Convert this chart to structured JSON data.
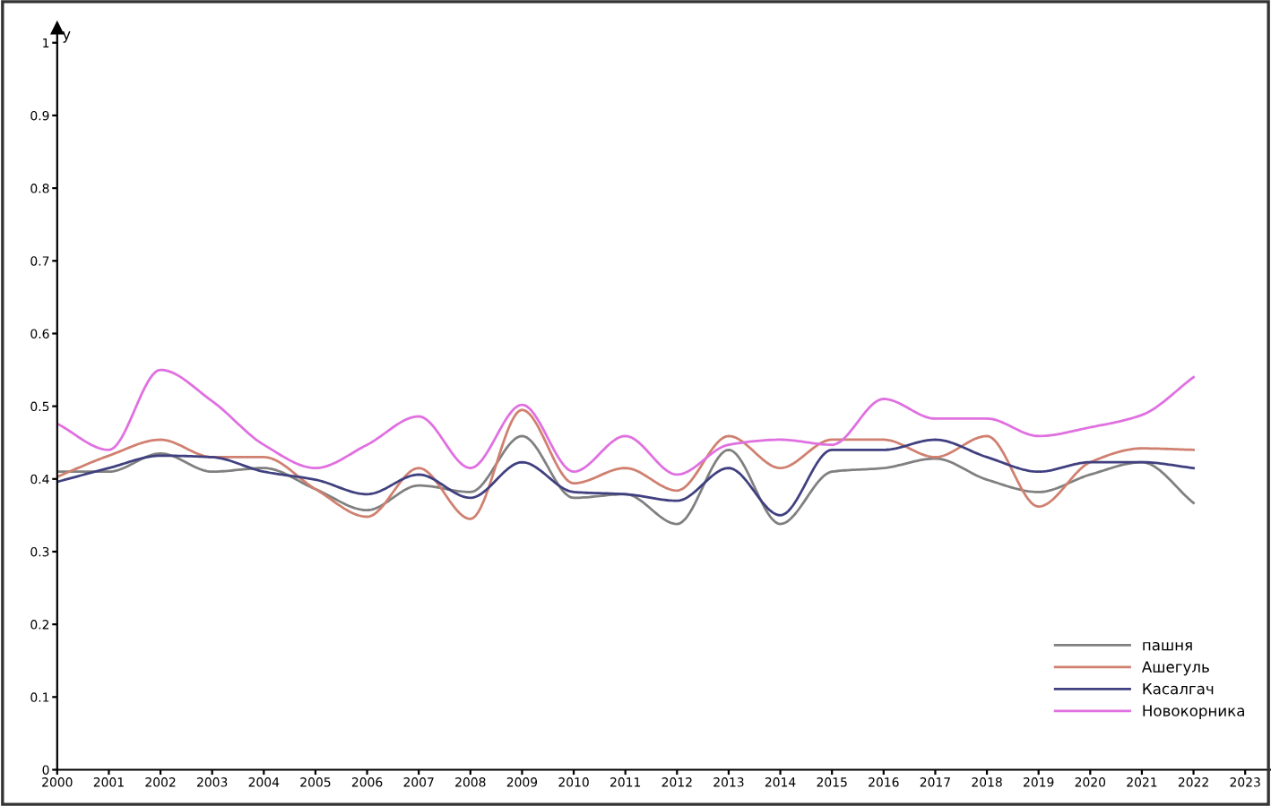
{
  "chart_data": {
    "type": "line",
    "ylabel": "y",
    "x": [
      2000,
      2001,
      2002,
      2003,
      2004,
      2005,
      2006,
      2007,
      2008,
      2009,
      2010,
      2011,
      2012,
      2013,
      2014,
      2015,
      2016,
      2017,
      2018,
      2019,
      2020,
      2021,
      2022
    ],
    "series": [
      {
        "name": "пашня",
        "color": "#808080",
        "values": [
          0.41,
          0.41,
          0.435,
          0.41,
          0.415,
          0.386,
          0.357,
          0.391,
          0.382,
          0.459,
          0.374,
          0.379,
          0.338,
          0.44,
          0.338,
          0.41,
          0.415,
          0.428,
          0.399,
          0.382,
          0.406,
          0.423,
          0.367
        ]
      },
      {
        "name": "Ашегуль",
        "color": "#d08070",
        "values": [
          0.403,
          0.432,
          0.454,
          0.43,
          0.43,
          0.386,
          0.348,
          0.415,
          0.345,
          0.495,
          0.394,
          0.415,
          0.384,
          0.459,
          0.415,
          0.454,
          0.454,
          0.43,
          0.459,
          0.362,
          0.423,
          0.442,
          0.44
        ]
      },
      {
        "name": "Касалгач",
        "color": "#404080",
        "values": [
          0.396,
          0.415,
          0.432,
          0.43,
          0.41,
          0.399,
          0.379,
          0.406,
          0.374,
          0.423,
          0.382,
          0.379,
          0.37,
          0.415,
          0.35,
          0.44,
          0.44,
          0.454,
          0.43,
          0.41,
          0.423,
          0.423,
          0.415
        ]
      },
      {
        "name": "Новокорника",
        "color": "#e070e0",
        "values": [
          0.476,
          0.44,
          0.55,
          0.507,
          0.447,
          0.415,
          0.447,
          0.486,
          0.415,
          0.502,
          0.41,
          0.459,
          0.406,
          0.447,
          0.454,
          0.447,
          0.51,
          0.483,
          0.483,
          0.459,
          0.471,
          0.488,
          0.54
        ]
      }
    ],
    "xlim": [
      2000,
      2023.5
    ],
    "xticks": [
      2000,
      2001,
      2002,
      2003,
      2004,
      2005,
      2006,
      2007,
      2008,
      2009,
      2010,
      2011,
      2012,
      2013,
      2014,
      2015,
      2016,
      2017,
      2018,
      2019,
      2020,
      2021,
      2022,
      2023
    ],
    "ylim": [
      0,
      1.02
    ],
    "yticks": [
      0,
      0.1,
      0.2,
      0.3,
      0.4,
      0.5,
      0.6,
      0.7,
      0.8,
      0.9,
      1
    ],
    "grid": false,
    "legend": "bottom right",
    "line_style": "solid",
    "marker": "none"
  }
}
